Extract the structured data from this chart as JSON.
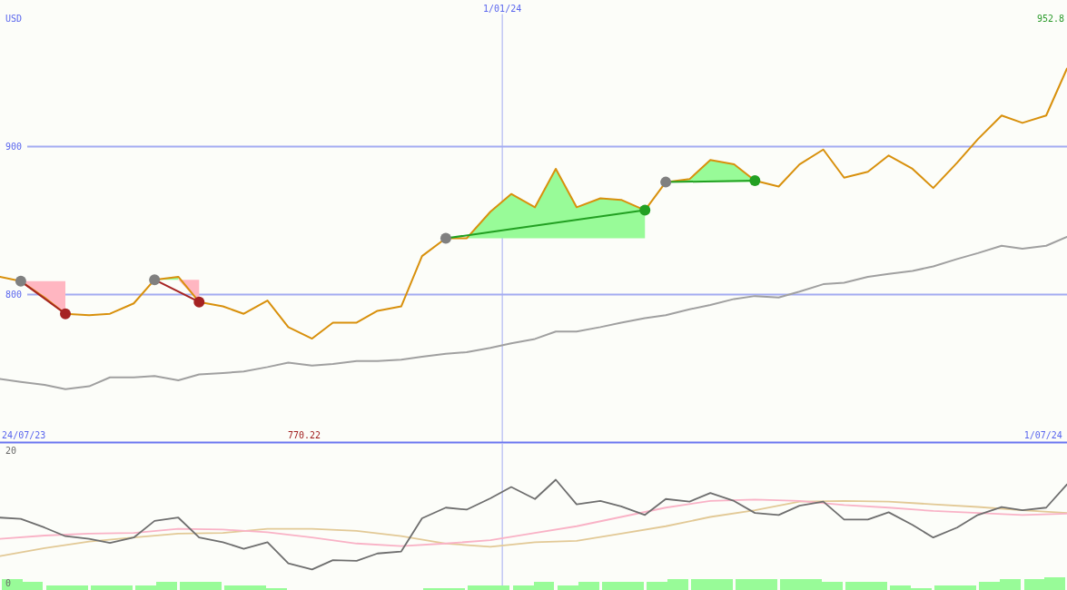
{
  "chart_data": [
    {
      "type": "line",
      "ylabel": "USD",
      "x": [
        "2023-07-16",
        "2023-07-23",
        "2023-07-31",
        "2023-08-07",
        "2023-08-15",
        "2023-08-22",
        "2023-08-30",
        "2023-09-06",
        "2023-09-14",
        "2023-09-21",
        "2023-09-29",
        "2023-10-06",
        "2023-10-14",
        "2023-10-21",
        "2023-10-29",
        "2023-11-05",
        "2023-11-13",
        "2023-11-20",
        "2023-11-28",
        "2023-12-05",
        "2023-12-13",
        "2023-12-20",
        "2023-12-28",
        "2024-01-04",
        "2024-01-12",
        "2024-01-19",
        "2024-01-26",
        "2024-02-03",
        "2024-02-10",
        "2024-02-18",
        "2024-02-25",
        "2024-03-04",
        "2024-03-11",
        "2024-03-19",
        "2024-03-26",
        "2024-04-03",
        "2024-04-10",
        "2024-04-18",
        "2024-04-25",
        "2024-05-03",
        "2024-05-10",
        "2024-05-18",
        "2024-05-25",
        "2024-06-02",
        "2024-06-09",
        "2024-06-17",
        "2024-06-24",
        "2024-07-02",
        "2024-07-09"
      ],
      "xlim": [
        "2023-07-16",
        "2024-07-09"
      ],
      "xticks": [
        {
          "value": "2023-07-24",
          "label": "24/07/23"
        },
        {
          "value": "2024-07-01",
          "label": "1/07/24"
        }
      ],
      "ylim": [
        700,
        1000
      ],
      "yticks": [
        800,
        900
      ],
      "grid": "y",
      "ref_lines": [
        {
          "axis": "x",
          "value": "2024-01-01",
          "label": "1/01/24"
        }
      ],
      "annotations": [
        "952.8",
        "770.22"
      ],
      "series": [
        {
          "type": "area",
          "color": "#ffb6c1",
          "x": [
            "2023-07-23",
            "2023-07-31",
            "2023-08-07"
          ],
          "values": [
            null,
            null,
            null
          ],
          "lower": [
            809,
            798,
            787
          ],
          "upper": [
            809,
            809,
            809
          ]
        },
        {
          "type": "area",
          "color": "#98fb98",
          "x": [
            "2023-09-06",
            "2023-09-14"
          ],
          "values": [
            null,
            null
          ],
          "lower": [
            810,
            810
          ],
          "upper": [
            810,
            812
          ]
        },
        {
          "type": "area",
          "color": "#ffb6c1",
          "x": [
            "2023-09-14",
            "2023-09-21"
          ],
          "values": [
            null,
            null
          ],
          "lower": [
            810,
            795
          ],
          "upper": [
            810,
            810
          ]
        },
        {
          "type": "area",
          "color": "#98fb98",
          "x": [
            "2023-12-13",
            "2023-12-20",
            "2023-12-28",
            "2024-01-04",
            "2024-01-12",
            "2024-01-19",
            "2024-01-26",
            "2024-02-03",
            "2024-02-10",
            "2024-02-18"
          ],
          "values": [
            null,
            null,
            null,
            null,
            null,
            null,
            null,
            null,
            null,
            null
          ],
          "lower": [
            838,
            838,
            838,
            838,
            838,
            838,
            838,
            838,
            838,
            838
          ],
          "upper": [
            838,
            838,
            856,
            868,
            859,
            885,
            859,
            865,
            864,
            857
          ]
        },
        {
          "type": "area",
          "color": "#98fb98",
          "x": [
            "2024-02-25",
            "2024-03-04",
            "2024-03-11",
            "2024-03-19",
            "2024-03-26"
          ],
          "values": [
            null,
            null,
            null,
            null,
            null
          ],
          "lower": [
            876,
            876,
            876,
            876,
            876
          ],
          "upper": [
            876,
            878,
            891,
            888,
            877
          ]
        },
        {
          "color": "#a0a0a0",
          "values": [
            743,
            741,
            739,
            736,
            738,
            744,
            744,
            745,
            742,
            746,
            747,
            748,
            751,
            754,
            752,
            753,
            755,
            755,
            756,
            758,
            760,
            761,
            764,
            767,
            770,
            775,
            775,
            778,
            781,
            784,
            786,
            790,
            793,
            797,
            799,
            798,
            802,
            807,
            808,
            812,
            814,
            816,
            819,
            824,
            828,
            833,
            831,
            833,
            839
          ]
        },
        {
          "color": "#d8900c",
          "values": [
            812,
            809,
            798,
            787,
            786,
            787,
            794,
            810,
            812,
            795,
            792,
            787,
            796,
            778,
            770.22,
            781,
            781,
            789,
            792,
            826,
            838,
            838,
            856,
            868,
            859,
            885,
            859,
            865,
            864,
            857,
            876,
            878,
            891,
            888,
            877,
            873,
            888,
            898,
            879,
            883,
            894,
            885,
            872,
            889,
            905,
            921,
            916,
            921,
            952.8
          ]
        },
        {
          "color": "#a52222",
          "x": [
            "2023-07-23",
            "2023-08-07"
          ],
          "values": [
            809,
            787
          ]
        },
        {
          "color": "#a52222",
          "x": [
            "2023-09-06",
            "2023-09-21"
          ],
          "values": [
            810,
            795
          ]
        },
        {
          "color": "#22a022",
          "x": [
            "2023-12-13",
            "2024-02-18"
          ],
          "values": [
            838,
            857
          ]
        },
        {
          "color": "#22a022",
          "x": [
            "2024-02-25",
            "2024-03-26"
          ],
          "values": [
            876,
            877
          ]
        },
        {
          "type": "scatter",
          "color": "#808080",
          "marker": "circle",
          "x": [
            "2023-07-23",
            "2023-09-06",
            "2023-12-13",
            "2024-02-25"
          ],
          "values": [
            809,
            810,
            838,
            876
          ]
        },
        {
          "type": "scatter",
          "color": "#a52222",
          "marker": "circle",
          "x": [
            "2023-08-07",
            "2023-09-21"
          ],
          "values": [
            787,
            795
          ]
        },
        {
          "type": "scatter",
          "color": "#22a022",
          "marker": "circle",
          "x": [
            "2024-02-18",
            "2024-03-26"
          ],
          "values": [
            857,
            877
          ]
        }
      ]
    },
    {
      "type": "line",
      "x": [
        "2023-07-16",
        "2023-07-23",
        "2023-07-31",
        "2023-08-07",
        "2023-08-15",
        "2023-08-22",
        "2023-08-30",
        "2023-09-06",
        "2023-09-14",
        "2023-09-21",
        "2023-09-29",
        "2023-10-06",
        "2023-10-14",
        "2023-10-21",
        "2023-10-29",
        "2023-11-05",
        "2023-11-13",
        "2023-11-20",
        "2023-11-28",
        "2023-12-05",
        "2023-12-13",
        "2023-12-20",
        "2023-12-28",
        "2024-01-04",
        "2024-01-12",
        "2024-01-19",
        "2024-01-26",
        "2024-02-03",
        "2024-02-10",
        "2024-02-18",
        "2024-02-25",
        "2024-03-04",
        "2024-03-11",
        "2024-03-19",
        "2024-03-26",
        "2024-04-03",
        "2024-04-10",
        "2024-04-18",
        "2024-04-25",
        "2024-05-03",
        "2024-05-10",
        "2024-05-18",
        "2024-05-25",
        "2024-06-02",
        "2024-06-09",
        "2024-06-17",
        "2024-06-24",
        "2024-07-02",
        "2024-07-09"
      ],
      "xlim": [
        "2023-07-16",
        "2024-07-09"
      ],
      "ylim": [
        -1,
        21
      ],
      "yticks": [
        0,
        20
      ],
      "tick_labels": "y",
      "ref_lines": [
        {
          "axis": "x",
          "value": "2024-01-01"
        }
      ],
      "series": [
        {
          "type": "bar",
          "color": "#98fb98",
          "x": [
            "2023-07-20",
            "2023-07-27",
            "2023-08-04",
            "2023-08-11",
            "2023-08-19",
            "2023-08-26",
            "2023-09-03",
            "2023-09-10",
            "2023-09-18",
            "2023-09-25",
            "2023-10-03",
            "2023-10-10",
            "2023-10-17",
            "2023-10-25",
            "2023-11-01",
            "2023-11-09",
            "2023-11-16",
            "2023-11-24",
            "2023-12-01",
            "2023-12-09",
            "2023-12-16",
            "2023-12-24",
            "2023-12-31",
            "2024-01-08",
            "2024-01-15",
            "2024-01-23",
            "2024-01-30",
            "2024-02-07",
            "2024-02-14",
            "2024-02-22",
            "2024-02-29",
            "2024-03-08",
            "2024-03-15",
            "2024-03-23",
            "2024-03-30",
            "2024-04-07",
            "2024-04-14",
            "2024-04-21",
            "2024-04-29",
            "2024-05-06",
            "2024-05-14",
            "2024-05-21",
            "2024-05-29",
            "2024-06-05",
            "2024-06-13",
            "2024-06-20",
            "2024-06-28",
            "2024-07-05"
          ],
          "base": [
            -1,
            -1,
            -1,
            -1,
            -1,
            -1,
            -1,
            -1,
            -1,
            -1,
            -1,
            -1,
            -1,
            null,
            null,
            null,
            null,
            null,
            null,
            -1,
            -1,
            -1,
            -1,
            -1,
            -1,
            -1,
            -1,
            -1,
            -1,
            -1,
            -1,
            -1,
            -1,
            -1,
            -1,
            -1,
            -1,
            -1,
            -1,
            -1,
            -1,
            -1,
            -1,
            -1,
            -1,
            -1,
            -1,
            -1
          ],
          "values": [
            1.6,
            1.2,
            0.7,
            0.7,
            0.7,
            0.7,
            0.7,
            1.2,
            1.2,
            1.2,
            0.7,
            0.7,
            0.3,
            null,
            null,
            null,
            null,
            null,
            null,
            0.3,
            0.3,
            0.7,
            0.7,
            0.7,
            1.2,
            0.7,
            1.2,
            1.2,
            1.2,
            1.2,
            1.6,
            1.6,
            1.6,
            1.6,
            1.6,
            1.6,
            1.6,
            1.2,
            1.2,
            1.2,
            0.7,
            0.3,
            0.7,
            0.7,
            1.2,
            1.6,
            1.6,
            1.9
          ]
        },
        {
          "color": "#e2c996",
          "x": [
            "2023-07-16",
            "2023-07-31",
            "2023-08-15",
            "2023-08-30",
            "2023-09-14",
            "2023-09-29",
            "2023-10-14",
            "2023-10-29",
            "2023-11-13",
            "2023-11-28",
            "2023-12-13",
            "2023-12-28",
            "2024-01-12",
            "2024-01-26",
            "2024-02-10",
            "2024-02-25",
            "2024-03-11",
            "2024-03-26",
            "2024-04-10",
            "2024-04-25",
            "2024-05-10",
            "2024-05-25",
            "2024-06-09",
            "2024-06-24",
            "2024-07-09"
          ],
          "values": [
            4.1,
            5.3,
            6.3,
            6.9,
            7.5,
            7.6,
            8.2,
            8.2,
            7.9,
            7.1,
            6,
            5.5,
            6.2,
            6.4,
            7.5,
            8.6,
            10,
            11,
            12.3,
            12.4,
            12.3,
            11.9,
            11.5,
            11,
            10.6
          ]
        },
        {
          "color": "#f9b2c6",
          "x": [
            "2023-07-16",
            "2023-07-31",
            "2023-08-15",
            "2023-08-30",
            "2023-09-14",
            "2023-09-29",
            "2023-10-14",
            "2023-10-29",
            "2023-11-13",
            "2023-11-28",
            "2023-12-13",
            "2023-12-28",
            "2024-01-12",
            "2024-01-26",
            "2024-02-10",
            "2024-02-25",
            "2024-03-11",
            "2024-03-26",
            "2024-04-10",
            "2024-04-25",
            "2024-05-10",
            "2024-05-25",
            "2024-06-09",
            "2024-06-24",
            "2024-07-09"
          ],
          "values": [
            6.7,
            7.2,
            7.5,
            7.6,
            8.2,
            8.1,
            7.7,
            6.9,
            6,
            5.6,
            6,
            6.5,
            7.6,
            8.6,
            10,
            11.4,
            12.4,
            12.6,
            12.4,
            11.8,
            11.4,
            10.9,
            10.6,
            10.3,
            10.5
          ]
        },
        {
          "color": "#6e6e6e",
          "values": [
            9.9,
            9.7,
            8.4,
            7.1,
            6.7,
            6.1,
            6.9,
            9.4,
            9.9,
            6.9,
            6.2,
            5.2,
            6.2,
            3,
            2.1,
            3.5,
            3.4,
            4.5,
            4.8,
            9.8,
            11.4,
            11.1,
            12.8,
            14.5,
            12.7,
            15.6,
            11.9,
            12.4,
            11.6,
            10.3,
            12.7,
            12.3,
            13.6,
            12.4,
            10.6,
            10.3,
            11.7,
            12.3,
            9.6,
            9.6,
            10.7,
            8.8,
            6.9,
            8.4,
            10.3,
            11.5,
            11,
            11.4,
            14.9
          ]
        }
      ]
    }
  ]
}
